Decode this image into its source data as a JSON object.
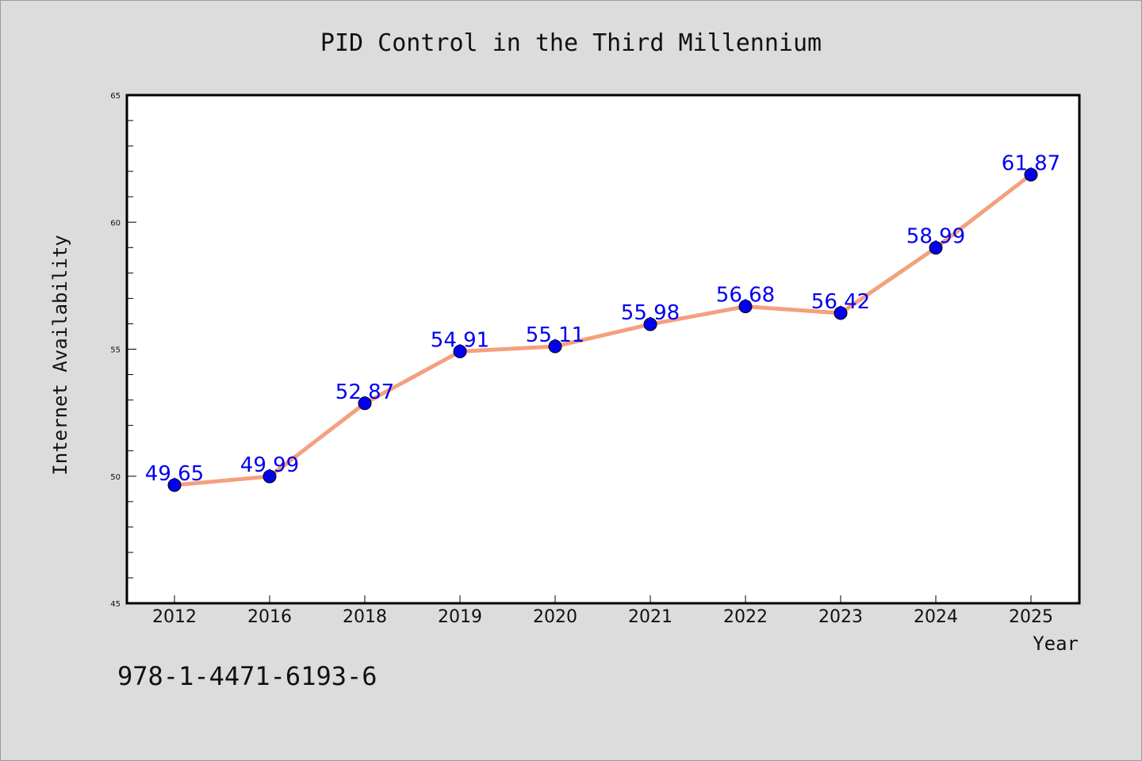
{
  "chart_data": {
    "type": "line",
    "title": "PID Control in the Third Millennium",
    "xlabel": "Year",
    "ylabel": "Internet Availability",
    "categories": [
      "2012",
      "2016",
      "2018",
      "2019",
      "2020",
      "2021",
      "2022",
      "2023",
      "2024",
      "2025"
    ],
    "series": [
      {
        "values": [
          49.65,
          49.99,
          52.87,
          54.91,
          55.11,
          55.98,
          56.68,
          56.42,
          58.99,
          61.87
        ],
        "labels": [
          "49.65",
          "49.99",
          "52.87",
          "54.91",
          "55.11",
          "55.98",
          "56.68",
          "56.42",
          "58.99",
          "61.87"
        ],
        "line_color": "#f4a07e",
        "marker_color": "#0000ee"
      }
    ],
    "ylim": [
      45,
      65
    ],
    "yticks": [
      "45",
      "50",
      "55",
      "60",
      "65"
    ],
    "grid": false,
    "legend": "none"
  },
  "footer": {
    "isbn": "978-1-4471-6193-6"
  }
}
